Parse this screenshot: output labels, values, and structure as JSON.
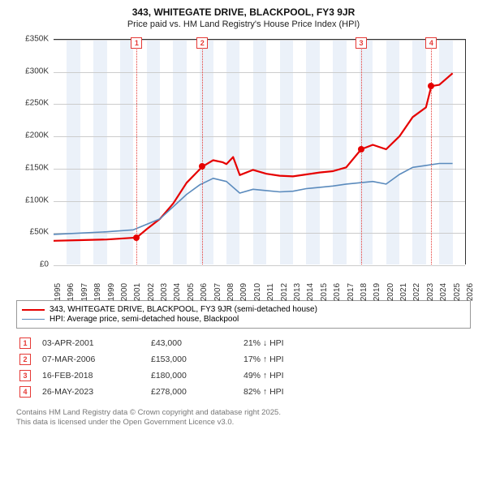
{
  "title": "343, WHITEGATE DRIVE, BLACKPOOL, FY3 9JR",
  "subtitle": "Price paid vs. HM Land Registry's House Price Index (HPI)",
  "chart": {
    "type": "line",
    "x_domain": [
      1995,
      2026
    ],
    "y_domain": [
      0,
      350000
    ],
    "y_ticks": [
      0,
      50000,
      100000,
      150000,
      200000,
      250000,
      300000,
      350000
    ],
    "y_tick_labels": [
      "£0",
      "£50K",
      "£100K",
      "£150K",
      "£200K",
      "£250K",
      "£300K",
      "£350K"
    ],
    "x_ticks": [
      1995,
      1996,
      1997,
      1998,
      1999,
      2000,
      2001,
      2002,
      2003,
      2004,
      2005,
      2006,
      2007,
      2008,
      2009,
      2010,
      2011,
      2012,
      2013,
      2014,
      2015,
      2016,
      2017,
      2018,
      2019,
      2020,
      2021,
      2022,
      2023,
      2024,
      2025,
      2026
    ],
    "background_color": "#ffffff",
    "grid_color": "#cccccc",
    "shaded_bands_color": "#dbe6f4",
    "shaded_bands": [
      [
        1996,
        1997
      ],
      [
        1998,
        1999
      ],
      [
        2000,
        2001
      ],
      [
        2002,
        2003
      ],
      [
        2004,
        2005
      ],
      [
        2006,
        2007
      ],
      [
        2008,
        2009
      ],
      [
        2010,
        2011
      ],
      [
        2012,
        2013
      ],
      [
        2014,
        2015
      ],
      [
        2016,
        2017
      ],
      [
        2018,
        2019
      ],
      [
        2020,
        2021
      ],
      [
        2022,
        2023
      ],
      [
        2024,
        2025
      ]
    ],
    "series": [
      {
        "id": "property",
        "label": "343, WHITEGATE DRIVE, BLACKPOOL, FY3 9JR (semi-detached house)",
        "color": "#e60000",
        "line_width": 2.2,
        "points": [
          [
            1995,
            38000
          ],
          [
            1997,
            39000
          ],
          [
            1999,
            40000
          ],
          [
            2001.25,
            43000
          ],
          [
            2002,
            56000
          ],
          [
            2003,
            72000
          ],
          [
            2004,
            96000
          ],
          [
            2005,
            128000
          ],
          [
            2006.18,
            153000
          ],
          [
            2007,
            163000
          ],
          [
            2007.7,
            160000
          ],
          [
            2008,
            157000
          ],
          [
            2008.5,
            168000
          ],
          [
            2009,
            140000
          ],
          [
            2010,
            148000
          ],
          [
            2011,
            142000
          ],
          [
            2012,
            139000
          ],
          [
            2013,
            138000
          ],
          [
            2014,
            141000
          ],
          [
            2015,
            144000
          ],
          [
            2016,
            146000
          ],
          [
            2017,
            152000
          ],
          [
            2018.13,
            180000
          ],
          [
            2019,
            187000
          ],
          [
            2020,
            180000
          ],
          [
            2021,
            200000
          ],
          [
            2022,
            230000
          ],
          [
            2023,
            245000
          ],
          [
            2023.4,
            278000
          ],
          [
            2024,
            280000
          ],
          [
            2025,
            298000
          ]
        ]
      },
      {
        "id": "hpi",
        "label": "HPI: Average price, semi-detached house, Blackpool",
        "color": "#5b8bbd",
        "line_width": 1.6,
        "points": [
          [
            1995,
            48000
          ],
          [
            1997,
            50000
          ],
          [
            1999,
            52000
          ],
          [
            2001,
            55000
          ],
          [
            2003,
            72000
          ],
          [
            2005,
            110000
          ],
          [
            2006,
            125000
          ],
          [
            2007,
            135000
          ],
          [
            2008,
            130000
          ],
          [
            2009,
            112000
          ],
          [
            2010,
            118000
          ],
          [
            2011,
            116000
          ],
          [
            2012,
            114000
          ],
          [
            2013,
            115000
          ],
          [
            2014,
            119000
          ],
          [
            2015,
            121000
          ],
          [
            2016,
            123000
          ],
          [
            2017,
            126000
          ],
          [
            2018,
            128000
          ],
          [
            2019,
            130000
          ],
          [
            2020,
            126000
          ],
          [
            2021,
            141000
          ],
          [
            2022,
            152000
          ],
          [
            2023,
            155000
          ],
          [
            2024,
            158000
          ],
          [
            2025,
            158000
          ]
        ]
      }
    ],
    "markers": [
      {
        "n": "1",
        "x": 2001.25,
        "y": 43000
      },
      {
        "n": "2",
        "x": 2006.18,
        "y": 153000
      },
      {
        "n": "3",
        "x": 2018.13,
        "y": 180000
      },
      {
        "n": "4",
        "x": 2023.4,
        "y": 278000
      }
    ],
    "marker_box_color": "#e53935",
    "marker_vline_color": "#e53935"
  },
  "transactions": [
    {
      "n": "1",
      "date": "03-APR-2001",
      "price": "£43,000",
      "delta": "21% ↓ HPI"
    },
    {
      "n": "2",
      "date": "07-MAR-2006",
      "price": "£153,000",
      "delta": "17% ↑ HPI"
    },
    {
      "n": "3",
      "date": "16-FEB-2018",
      "price": "£180,000",
      "delta": "49% ↑ HPI"
    },
    {
      "n": "4",
      "date": "26-MAY-2023",
      "price": "£278,000",
      "delta": "82% ↑ HPI"
    }
  ],
  "footer": {
    "line1": "Contains HM Land Registry data © Crown copyright and database right 2025.",
    "line2": "This data is licensed under the Open Government Licence v3.0."
  }
}
